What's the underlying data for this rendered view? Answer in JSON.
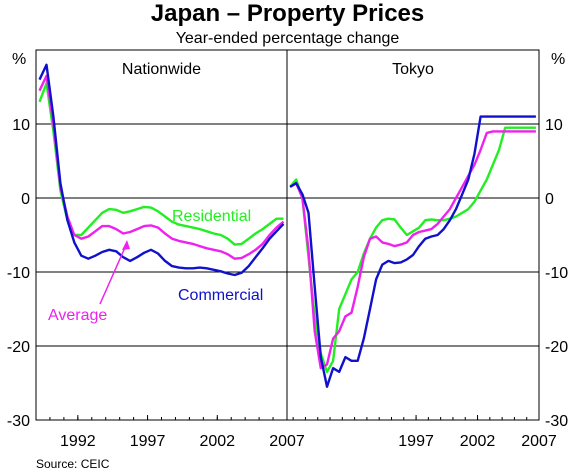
{
  "title": "Japan – Property Prices",
  "subtitle": "Year-ended percentage change",
  "source": "Source: CEIC",
  "unit_left": "%",
  "unit_right": "%",
  "colors": {
    "residential": "#22ee22",
    "average": "#ee22ee",
    "commercial": "#1111cc"
  },
  "chart_data": [
    {
      "type": "line",
      "panel": "Nationwide",
      "ylim": [
        -30,
        20
      ],
      "yticks": [
        -30,
        -20,
        -10,
        0,
        10
      ],
      "xticks": [
        "1992",
        "1997",
        "2002",
        "2007"
      ],
      "grid": true,
      "series": [
        {
          "name": "Residential",
          "label_color_key": "residential",
          "x": [
            1989.25,
            1989.75,
            1990.25,
            1990.75,
            1991.25,
            1991.75,
            1992.25,
            1992.75,
            1993.25,
            1993.75,
            1994.25,
            1994.75,
            1995.25,
            1995.75,
            1996.25,
            1996.75,
            1997.25,
            1997.75,
            1998.25,
            1998.75,
            1999.25,
            1999.75,
            2000.25,
            2000.75,
            2001.25,
            2001.75,
            2002.25,
            2002.75,
            2003.25,
            2003.75,
            2004.25,
            2004.75,
            2005.25,
            2005.75,
            2006.25,
            2006.75
          ],
          "y": [
            13,
            15.5,
            9,
            1,
            -3,
            -5,
            -5,
            -4,
            -3,
            -2,
            -1.5,
            -1.6,
            -2,
            -1.8,
            -1.5,
            -1.2,
            -1.3,
            -1.8,
            -2.5,
            -3.2,
            -3.6,
            -3.8,
            -4,
            -4.2,
            -4.5,
            -4.8,
            -5,
            -5.5,
            -6.3,
            -6.2,
            -5.5,
            -4.8,
            -4.2,
            -3.5,
            -2.8,
            -2.8
          ]
        },
        {
          "name": "Average",
          "label_color_key": "average",
          "x": [
            1989.25,
            1989.75,
            1990.25,
            1990.75,
            1991.25,
            1991.75,
            1992.25,
            1992.75,
            1993.25,
            1993.75,
            1994.25,
            1994.75,
            1995.25,
            1995.75,
            1996.25,
            1996.75,
            1997.25,
            1997.75,
            1998.25,
            1998.75,
            1999.25,
            1999.75,
            2000.25,
            2000.75,
            2001.25,
            2001.75,
            2002.25,
            2002.75,
            2003.25,
            2003.75,
            2004.25,
            2004.75,
            2005.25,
            2005.75,
            2006.25,
            2006.75
          ],
          "y": [
            14.5,
            16.5,
            10,
            1.5,
            -2.5,
            -5,
            -5.5,
            -5.2,
            -4.5,
            -3.8,
            -3.8,
            -4.2,
            -4.8,
            -4.6,
            -4.2,
            -3.8,
            -3.7,
            -4,
            -4.8,
            -5.5,
            -5.8,
            -6,
            -6.2,
            -6.5,
            -6.8,
            -7,
            -7.2,
            -7.6,
            -8.2,
            -8.1,
            -7.6,
            -7,
            -6.2,
            -5,
            -4,
            -3.2
          ]
        },
        {
          "name": "Commercial",
          "label_color_key": "commercial",
          "x": [
            1989.25,
            1989.75,
            1990.25,
            1990.75,
            1991.25,
            1991.75,
            1992.25,
            1992.75,
            1993.25,
            1993.75,
            1994.25,
            1994.75,
            1995.25,
            1995.75,
            1996.25,
            1996.75,
            1997.25,
            1997.75,
            1998.25,
            1998.75,
            1999.25,
            1999.75,
            2000.25,
            2000.75,
            2001.25,
            2001.75,
            2002.25,
            2002.75,
            2003.25,
            2003.75,
            2004.25,
            2004.75,
            2005.25,
            2005.75,
            2006.25,
            2006.75
          ],
          "y": [
            16,
            18,
            11,
            2,
            -3,
            -6,
            -7.8,
            -8.2,
            -7.8,
            -7.3,
            -7,
            -7.2,
            -8,
            -8.5,
            -8,
            -7.4,
            -7,
            -7.5,
            -8.5,
            -9.2,
            -9.4,
            -9.5,
            -9.5,
            -9.4,
            -9.5,
            -9.7,
            -9.9,
            -10.2,
            -10.4,
            -10.1,
            -9.2,
            -8,
            -6.8,
            -5.5,
            -4.5,
            -3.5
          ]
        }
      ],
      "annotations": [
        {
          "text": "Residential",
          "series": "Residential"
        },
        {
          "text": "Average",
          "series": "Average",
          "arrow": true
        },
        {
          "text": "Commercial",
          "series": "Commercial"
        }
      ]
    },
    {
      "type": "line",
      "panel": "Tokyo",
      "ylim": [
        -30,
        20
      ],
      "yticks": [
        -30,
        -20,
        -10,
        0,
        10
      ],
      "xticks": [
        "1997",
        "2002",
        "2007"
      ],
      "grid": true,
      "series": [
        {
          "name": "Residential",
          "label_color_key": "residential",
          "x": [
            1986.75,
            1987.25,
            1987.75,
            1988.25,
            1988.75,
            1989.25,
            1989.75,
            1990.25,
            1990.75,
            1991.25,
            1991.75,
            1992.25,
            1992.75,
            1993.25,
            1993.75,
            1994.25,
            1994.75,
            1995.25,
            1995.75,
            1996.25,
            1996.75,
            1997.25,
            1997.75,
            1998.25,
            1998.75,
            1999.25,
            1999.75,
            2000.25,
            2000.75,
            2001.25,
            2001.75,
            2002.25,
            2002.75,
            2003.25,
            2003.75,
            2004.25,
            2004.75,
            2005.25,
            2005.75,
            2006.25,
            2006.75
          ],
          "y": [
            1.5,
            2.5,
            0,
            -8,
            -16,
            -21,
            -23.5,
            -22,
            -15,
            -13,
            -11,
            -10,
            -7.5,
            -5.5,
            -4,
            -3,
            -2.8,
            -2.9,
            -4,
            -5,
            -4.5,
            -4,
            -3,
            -2.9,
            -3,
            -3,
            -2.8,
            -2.5,
            -2,
            -1.5,
            -0.5,
            1,
            2.5,
            4.5,
            6.5,
            9.5,
            9.5,
            9.5,
            9.5,
            9.5,
            9.5
          ]
        },
        {
          "name": "Average",
          "label_color_key": "average",
          "x": [
            1986.75,
            1987.25,
            1987.75,
            1988.25,
            1988.75,
            1989.25,
            1989.75,
            1990.25,
            1990.75,
            1991.25,
            1991.75,
            1992.25,
            1992.75,
            1993.25,
            1993.75,
            1994.25,
            1994.75,
            1995.25,
            1995.75,
            1996.25,
            1996.75,
            1997.25,
            1997.75,
            1998.25,
            1998.75,
            1999.25,
            1999.75,
            2000.25,
            2000.75,
            2001.25,
            2001.75,
            2002.25,
            2002.75,
            2003.25,
            2003.75,
            2004.25,
            2004.75,
            2005.25,
            2005.75,
            2006.25,
            2006.75
          ],
          "y": [
            1.5,
            2,
            0,
            -7,
            -18,
            -23,
            -22.5,
            -19,
            -18,
            -16,
            -15.5,
            -12,
            -8,
            -5.5,
            -5.2,
            -6,
            -6.2,
            -6.5,
            -6.3,
            -6,
            -5,
            -4.6,
            -4.4,
            -4.2,
            -3.5,
            -2.5,
            -1.5,
            0,
            1.5,
            3,
            4.5,
            6.5,
            8.8,
            9,
            9,
            9,
            9,
            9,
            9,
            9,
            9
          ]
        },
        {
          "name": "Commercial",
          "label_color_key": "commercial",
          "x": [
            1986.75,
            1987.25,
            1987.75,
            1988.25,
            1988.75,
            1989.25,
            1989.75,
            1990.25,
            1990.75,
            1991.25,
            1991.75,
            1992.25,
            1992.75,
            1993.25,
            1993.75,
            1994.25,
            1994.75,
            1995.25,
            1995.75,
            1996.25,
            1996.75,
            1997.25,
            1997.75,
            1998.25,
            1998.75,
            1999.25,
            1999.75,
            2000.25,
            2000.75,
            2001.25,
            2001.75,
            2002.25,
            2002.75,
            2003.25,
            2003.75,
            2004.25,
            2004.75,
            2005.25,
            2005.75,
            2006.25,
            2006.75
          ],
          "y": [
            1.5,
            2,
            0.5,
            -2,
            -12,
            -21.5,
            -25.5,
            -23,
            -23.5,
            -21.5,
            -22,
            -22,
            -19,
            -15,
            -11,
            -9,
            -8.5,
            -8.8,
            -8.7,
            -8.3,
            -7.7,
            -6.5,
            -5.5,
            -5.2,
            -5,
            -4.2,
            -3,
            -1.5,
            0.5,
            2.5,
            6,
            11,
            11,
            11,
            11,
            11,
            11,
            11,
            11,
            11,
            11
          ]
        }
      ]
    }
  ]
}
